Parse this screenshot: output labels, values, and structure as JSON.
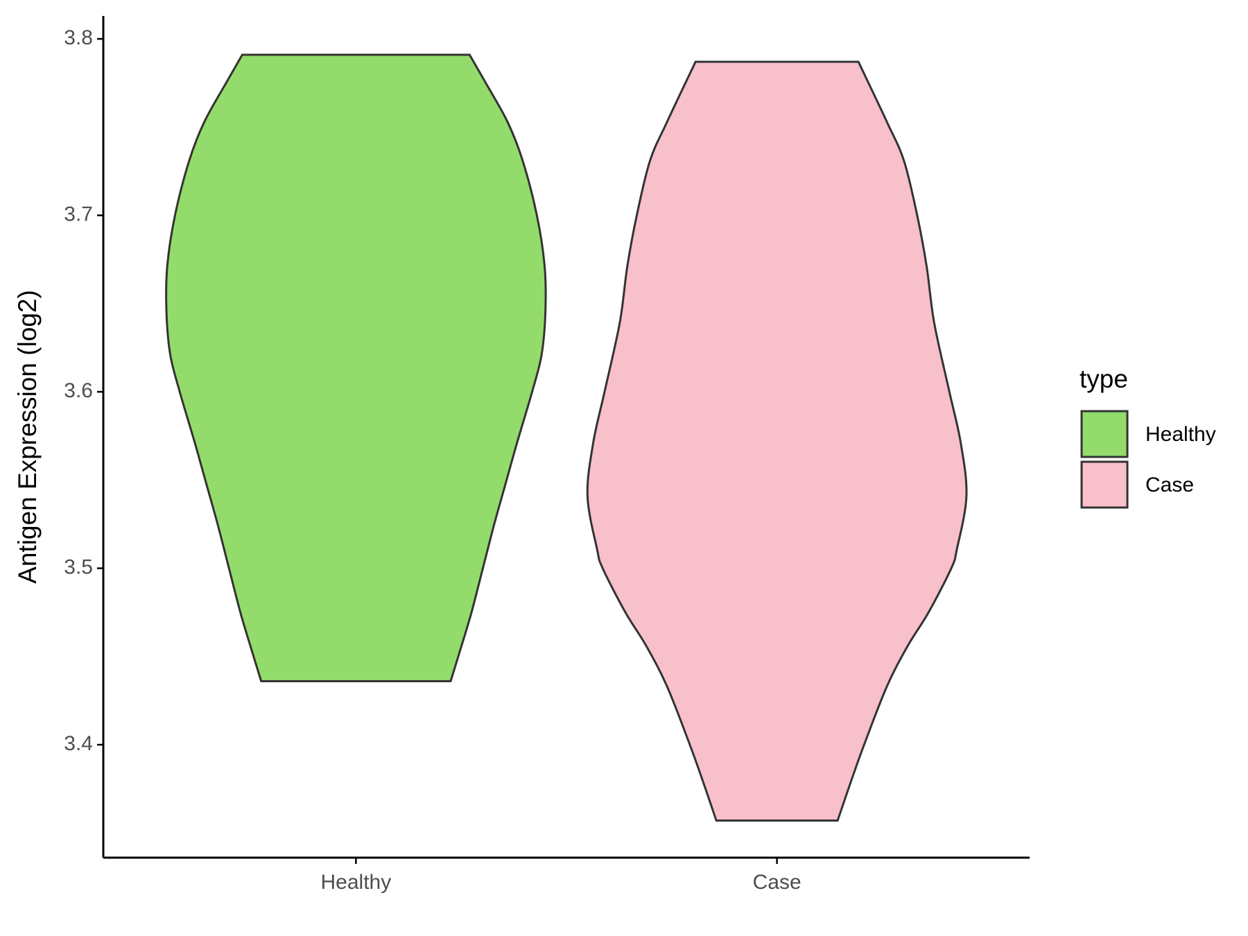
{
  "chart_data": {
    "type": "violin",
    "ylabel": "Antigen Expression (log2)",
    "categories": [
      "Healthy",
      "Case"
    ],
    "legend_title": "type",
    "ylim": [
      3.336,
      3.813
    ],
    "yticks": [
      3.4,
      3.5,
      3.6,
      3.7,
      3.8
    ],
    "series": [
      {
        "name": "Healthy",
        "color": "#93dc6b",
        "y": [
          3.791,
          3.776,
          3.753,
          3.731,
          3.7,
          3.671,
          3.645,
          3.621,
          3.6,
          3.571,
          3.548,
          3.525,
          3.5,
          3.475,
          3.457,
          3.436
        ],
        "widths": [
          0.6,
          0.68,
          0.8,
          0.88,
          0.955,
          0.996,
          1.0,
          0.98,
          0.93,
          0.85,
          0.79,
          0.73,
          0.67,
          0.61,
          0.56,
          0.5
        ]
      },
      {
        "name": "Case",
        "color": "#f7c0cb",
        "y": [
          3.787,
          3.753,
          3.731,
          3.7,
          3.671,
          3.639,
          3.6,
          3.571,
          3.541,
          3.511,
          3.5,
          3.475,
          3.456,
          3.433,
          3.4,
          3.379,
          3.357
        ],
        "widths": [
          0.43,
          0.58,
          0.67,
          0.74,
          0.79,
          0.83,
          0.91,
          0.97,
          1.0,
          0.95,
          0.92,
          0.8,
          0.69,
          0.58,
          0.46,
          0.39,
          0.32
        ]
      }
    ]
  }
}
